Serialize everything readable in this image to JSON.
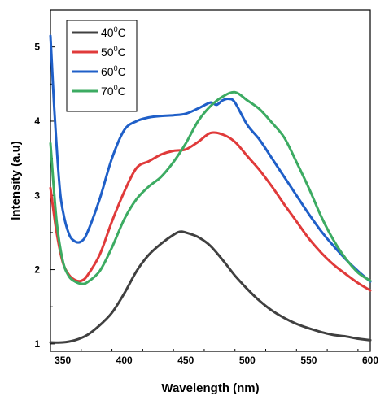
{
  "chart_data": {
    "type": "line",
    "xlabel": "Wavelength (nm)",
    "ylabel": "Intensity (a.u)",
    "xlim": [
      340,
      600
    ],
    "ylim": [
      0.9,
      5.5
    ],
    "xticks": [
      350,
      400,
      450,
      500,
      550,
      600
    ],
    "yticks": [
      1,
      2,
      3,
      4,
      5
    ],
    "grid": false,
    "legend_position": "top-left",
    "series": [
      {
        "name": "40⁰C",
        "legend_main": "40",
        "legend_sup": "0",
        "legend_tail": "C",
        "color": "#404040",
        "x": [
          340,
          350,
          360,
          370,
          380,
          390,
          400,
          410,
          420,
          430,
          440,
          445,
          450,
          460,
          470,
          480,
          490,
          500,
          510,
          520,
          530,
          540,
          550,
          560,
          570,
          580,
          590,
          600
        ],
        "y": [
          1.02,
          1.02,
          1.05,
          1.12,
          1.25,
          1.42,
          1.68,
          1.98,
          2.2,
          2.35,
          2.47,
          2.51,
          2.5,
          2.44,
          2.32,
          2.13,
          1.92,
          1.74,
          1.58,
          1.45,
          1.35,
          1.27,
          1.21,
          1.16,
          1.12,
          1.1,
          1.07,
          1.05
        ]
      },
      {
        "name": "50⁰C",
        "legend_main": "50",
        "legend_sup": "0",
        "legend_tail": "C",
        "color": "#e03a3a",
        "x": [
          340,
          345,
          350,
          355,
          360,
          365,
          370,
          380,
          390,
          400,
          410,
          420,
          430,
          440,
          450,
          460,
          470,
          480,
          490,
          500,
          510,
          520,
          530,
          540,
          550,
          560,
          570,
          580,
          590,
          600
        ],
        "y": [
          3.1,
          2.5,
          2.1,
          1.93,
          1.86,
          1.85,
          1.92,
          2.2,
          2.65,
          3.05,
          3.37,
          3.46,
          3.55,
          3.6,
          3.62,
          3.72,
          3.84,
          3.82,
          3.72,
          3.53,
          3.34,
          3.12,
          2.88,
          2.65,
          2.42,
          2.23,
          2.07,
          1.94,
          1.82,
          1.72
        ]
      },
      {
        "name": "60⁰C",
        "legend_main": "60",
        "legend_sup": "0",
        "legend_tail": "C",
        "color": "#1f5fc8",
        "x": [
          340,
          343,
          347,
          350,
          355,
          360,
          365,
          370,
          380,
          390,
          400,
          410,
          420,
          430,
          440,
          450,
          460,
          470,
          475,
          480,
          485,
          490,
          500,
          510,
          520,
          530,
          540,
          550,
          560,
          570,
          580,
          590,
          600
        ],
        "y": [
          5.15,
          4.2,
          3.2,
          2.8,
          2.48,
          2.38,
          2.38,
          2.5,
          2.95,
          3.5,
          3.88,
          4.0,
          4.05,
          4.07,
          4.08,
          4.1,
          4.17,
          4.25,
          4.22,
          4.28,
          4.3,
          4.25,
          3.95,
          3.75,
          3.5,
          3.25,
          3.0,
          2.75,
          2.52,
          2.32,
          2.14,
          1.98,
          1.84
        ]
      },
      {
        "name": "70⁰C",
        "legend_main": "70",
        "legend_sup": "0",
        "legend_tail": "C",
        "color": "#3cab62",
        "x": [
          340,
          345,
          350,
          355,
          360,
          365,
          370,
          380,
          390,
          400,
          410,
          420,
          430,
          440,
          450,
          460,
          470,
          480,
          490,
          500,
          510,
          520,
          530,
          540,
          550,
          560,
          570,
          580,
          590,
          600
        ],
        "y": [
          3.7,
          2.65,
          2.12,
          1.91,
          1.84,
          1.81,
          1.83,
          1.98,
          2.3,
          2.68,
          2.95,
          3.12,
          3.25,
          3.45,
          3.7,
          4.0,
          4.2,
          4.33,
          4.39,
          4.28,
          4.16,
          3.98,
          3.78,
          3.45,
          3.1,
          2.72,
          2.4,
          2.15,
          1.96,
          1.85
        ]
      }
    ]
  }
}
